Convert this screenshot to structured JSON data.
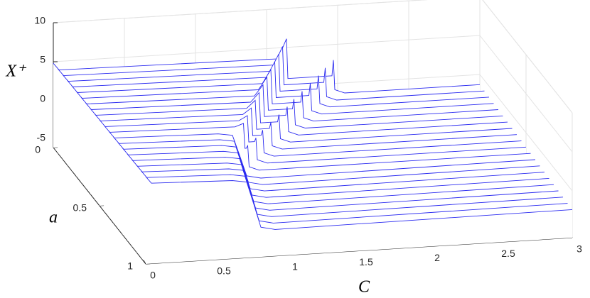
{
  "chart_data": {
    "type": "waterfall3d",
    "xlabel": "C",
    "ylabel": "a",
    "zlabel": "X⁺",
    "color": "#2b2bf0",
    "grid": true,
    "xlim": [
      0,
      3
    ],
    "xticks": [
      0,
      0.5,
      1,
      1.5,
      2,
      2.5,
      3
    ],
    "ylim": [
      0,
      1
    ],
    "yticks": [
      0,
      0.5,
      1
    ],
    "zlim": [
      -6,
      10
    ],
    "zticks": [
      -5,
      0,
      5,
      10
    ],
    "series": [
      {
        "a": 0,
        "x": [
          0,
          0.04,
          1.58,
          1.64,
          1.65,
          1.96,
          1.97,
          1.98,
          2.05,
          3
        ],
        "values": [
          4.8,
          3.9,
          3.6,
          6.1,
          1,
          1,
          3,
          -0.8,
          -1.3,
          -1.3
        ]
      },
      {
        "a": 0.05,
        "x": [
          0,
          0.04,
          1.52,
          1.58,
          1.59,
          1.87,
          1.88,
          1.89,
          1.96,
          3
        ],
        "values": [
          4.82,
          3.92,
          3.62,
          5.93,
          1,
          1,
          2.85,
          -0.86,
          -1.36,
          -1.36
        ]
      },
      {
        "a": 0.1,
        "x": [
          0,
          0.04,
          1.46,
          1.52,
          1.53,
          1.79,
          1.8,
          1.81,
          1.88,
          3
        ],
        "values": [
          4.84,
          3.94,
          3.64,
          5.76,
          1,
          1,
          2.69,
          -0.91,
          -1.41,
          -1.41
        ]
      },
      {
        "a": 0.15,
        "x": [
          0,
          0.04,
          1.4,
          1.46,
          1.47,
          1.7,
          1.71,
          1.72,
          1.79,
          3
        ],
        "values": [
          4.86,
          3.96,
          3.66,
          5.58,
          1,
          1,
          2.54,
          -0.97,
          -1.47,
          -1.47
        ]
      },
      {
        "a": 0.2,
        "x": [
          0,
          0.04,
          1.34,
          1.4,
          1.41,
          1.61,
          1.62,
          1.63,
          1.7,
          3
        ],
        "values": [
          4.88,
          3.98,
          3.68,
          5.41,
          1,
          1,
          2.38,
          -1.02,
          -1.52,
          -1.52
        ]
      },
      {
        "a": 0.25,
        "x": [
          0,
          0.04,
          1.28,
          1.34,
          1.35,
          1.52,
          1.53,
          1.54,
          1.61,
          3
        ],
        "values": [
          4.9,
          4,
          3.7,
          5.24,
          1,
          1,
          2.23,
          -1.08,
          -1.58,
          -1.58
        ]
      },
      {
        "a": 0.3,
        "x": [
          0,
          0.04,
          1.22,
          1.28,
          1.29,
          1.44,
          1.45,
          1.46,
          1.53,
          3
        ],
        "values": [
          4.92,
          4.02,
          3.72,
          5.07,
          1,
          1,
          2.08,
          -1.13,
          -1.63,
          -1.63
        ]
      },
      {
        "a": 0.35,
        "x": [
          0,
          0.04,
          1.16,
          1.22,
          1.23,
          1.35,
          1.36,
          1.37,
          1.44,
          3
        ],
        "values": [
          4.94,
          4.04,
          3.74,
          4.89,
          1,
          1,
          1.92,
          -1.19,
          -1.69,
          -1.69
        ]
      },
      {
        "a": 0.4,
        "x": [
          0,
          0.04,
          1.1,
          1.16,
          1.17,
          1.26,
          1.27,
          1.28,
          1.35,
          3
        ],
        "values": [
          4.96,
          4.06,
          3.76,
          4.72,
          1,
          1,
          1.77,
          -1.24,
          -1.74,
          -1.74
        ]
      },
      {
        "a": 0.45,
        "x": [
          0,
          0.04,
          1.04,
          1.1,
          1.11,
          1.17,
          1.18,
          1.19,
          1.26,
          3
        ],
        "values": [
          4.98,
          4.08,
          3.78,
          4.55,
          1,
          1,
          1.62,
          -1.3,
          -1.8,
          -1.8
        ]
      },
      {
        "a": 0.5,
        "x": [
          0,
          0.04,
          0.98,
          1.04,
          1.05,
          1.09,
          1.1,
          1.11,
          1.18,
          3
        ],
        "values": [
          5,
          4.1,
          3.8,
          4.38,
          1,
          1,
          1.46,
          -1.35,
          -1.85,
          -1.85
        ]
      },
      {
        "a": 0.55,
        "x": [
          0,
          0.04,
          0.92,
          0.98,
          0.99,
          1,
          1.01,
          1.02,
          1.09,
          3
        ],
        "values": [
          5.02,
          4.12,
          3.82,
          4.2,
          1,
          1,
          1.31,
          -1.41,
          -1.91,
          -1.91
        ]
      },
      {
        "a": 0.6,
        "x": [
          0,
          0.04,
          0.77,
          0.87,
          0.92,
          0.97,
          1.07,
          3
        ],
        "values": [
          5.04,
          4.14,
          3.84,
          3.54,
          0.94,
          -1.76,
          -2.16,
          -1.96
        ]
      },
      {
        "a": 0.65,
        "x": [
          0,
          0.04,
          0.75,
          0.85,
          0.9,
          0.95,
          1.05,
          3
        ],
        "values": [
          5.06,
          4.16,
          3.86,
          3.56,
          0.92,
          -1.82,
          -2.22,
          -2.02
        ]
      },
      {
        "a": 0.7,
        "x": [
          0,
          0.04,
          0.73,
          0.83,
          0.88,
          0.93,
          1.03,
          3
        ],
        "values": [
          5.08,
          4.18,
          3.88,
          3.58,
          0.91,
          -1.87,
          -2.27,
          -2.07
        ]
      },
      {
        "a": 0.75,
        "x": [
          0,
          0.04,
          0.71,
          0.81,
          0.86,
          0.91,
          1.01,
          3
        ],
        "values": [
          5.1,
          4.2,
          3.9,
          3.6,
          0.89,
          -1.93,
          -2.33,
          -2.13
        ]
      },
      {
        "a": 0.8,
        "x": [
          0,
          0.04,
          0.69,
          0.79,
          0.84,
          0.89,
          0.99,
          3
        ],
        "values": [
          5.12,
          4.22,
          3.92,
          3.62,
          0.87,
          -1.98,
          -2.38,
          -2.18
        ]
      },
      {
        "a": 0.85,
        "x": [
          0,
          0.04,
          0.67,
          0.77,
          0.82,
          0.87,
          0.97,
          3
        ],
        "values": [
          5.14,
          4.24,
          3.94,
          3.64,
          0.85,
          -2.04,
          -2.44,
          -2.24
        ]
      },
      {
        "a": 0.9,
        "x": [
          0,
          0.04,
          0.65,
          0.75,
          0.8,
          0.85,
          0.95,
          3
        ],
        "values": [
          5.16,
          4.26,
          3.96,
          3.66,
          0.84,
          -2.09,
          -2.49,
          -2.29
        ]
      },
      {
        "a": 0.95,
        "x": [
          0,
          0.04,
          0.63,
          0.73,
          0.78,
          0.83,
          0.93,
          3
        ],
        "values": [
          5.18,
          4.28,
          3.98,
          3.68,
          0.82,
          -2.15,
          -2.55,
          -2.35
        ]
      },
      {
        "a": 1,
        "x": [
          0,
          0.04,
          0.61,
          0.71,
          0.76,
          0.81,
          0.91,
          3
        ],
        "values": [
          5.2,
          4.3,
          4,
          3.7,
          0.8,
          -2.2,
          -2.6,
          -2.4
        ]
      }
    ]
  }
}
